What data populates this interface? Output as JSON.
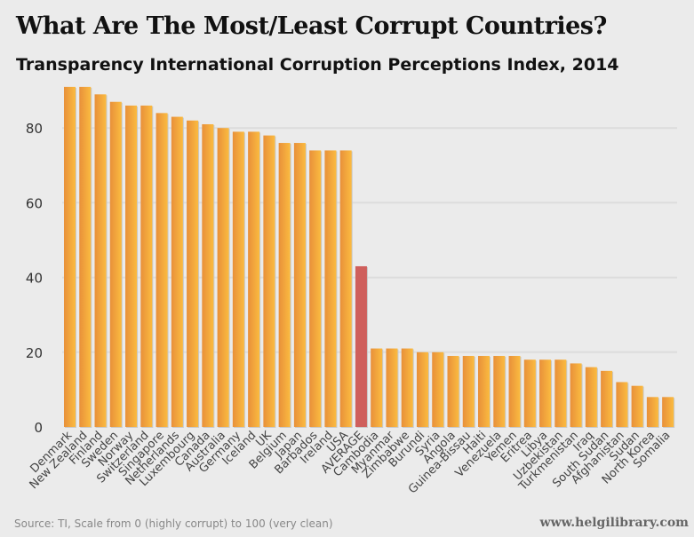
{
  "chart_data": {
    "type": "bar",
    "title": "What Are The Most/Least Corrupt Countries?",
    "subtitle": "Transparency International Corruption Perceptions Index, 2014",
    "xlabel": "",
    "ylabel": "",
    "ylim": [
      0,
      92
    ],
    "yticks": [
      0,
      20,
      40,
      60,
      80
    ],
    "grid": true,
    "categories": [
      "Denmark",
      "New Zealand",
      "Finland",
      "Sweden",
      "Norway",
      "Switzerland",
      "Singapore",
      "Netherlands",
      "Luxembourg",
      "Canada",
      "Australia",
      "Germany",
      "Iceland",
      "UK",
      "Belgium",
      "Japan",
      "Barbados",
      "Ireland",
      "USA",
      "AVERAGE",
      "Cambodia",
      "Myanmar",
      "Zimbabwe",
      "Burundi",
      "Syria",
      "Angola",
      "Guinea-Bissau",
      "Haiti",
      "Venezuela",
      "Yemen",
      "Eritrea",
      "Libya",
      "Uzbekistan",
      "Turkmenistan",
      "Iraq",
      "South Sudan",
      "Afghanistan",
      "Sudan",
      "North Korea",
      "Somalia"
    ],
    "values": [
      91,
      91,
      89,
      87,
      86,
      86,
      84,
      83,
      82,
      81,
      80,
      79,
      79,
      78,
      76,
      76,
      74,
      74,
      74,
      43,
      21,
      21,
      21,
      20,
      20,
      19,
      19,
      19,
      19,
      19,
      18,
      18,
      18,
      17,
      16,
      15,
      12,
      11,
      8,
      8
    ],
    "highlight": "AVERAGE",
    "colors": {
      "bar": "#f2a33a",
      "highlight": "#cf5f5c",
      "grid": "#dcdcdc"
    }
  },
  "source": "Source: TI, Scale from 0 (highly corrupt) to 100 (very clean)",
  "site": "www.helgilibrary.com"
}
